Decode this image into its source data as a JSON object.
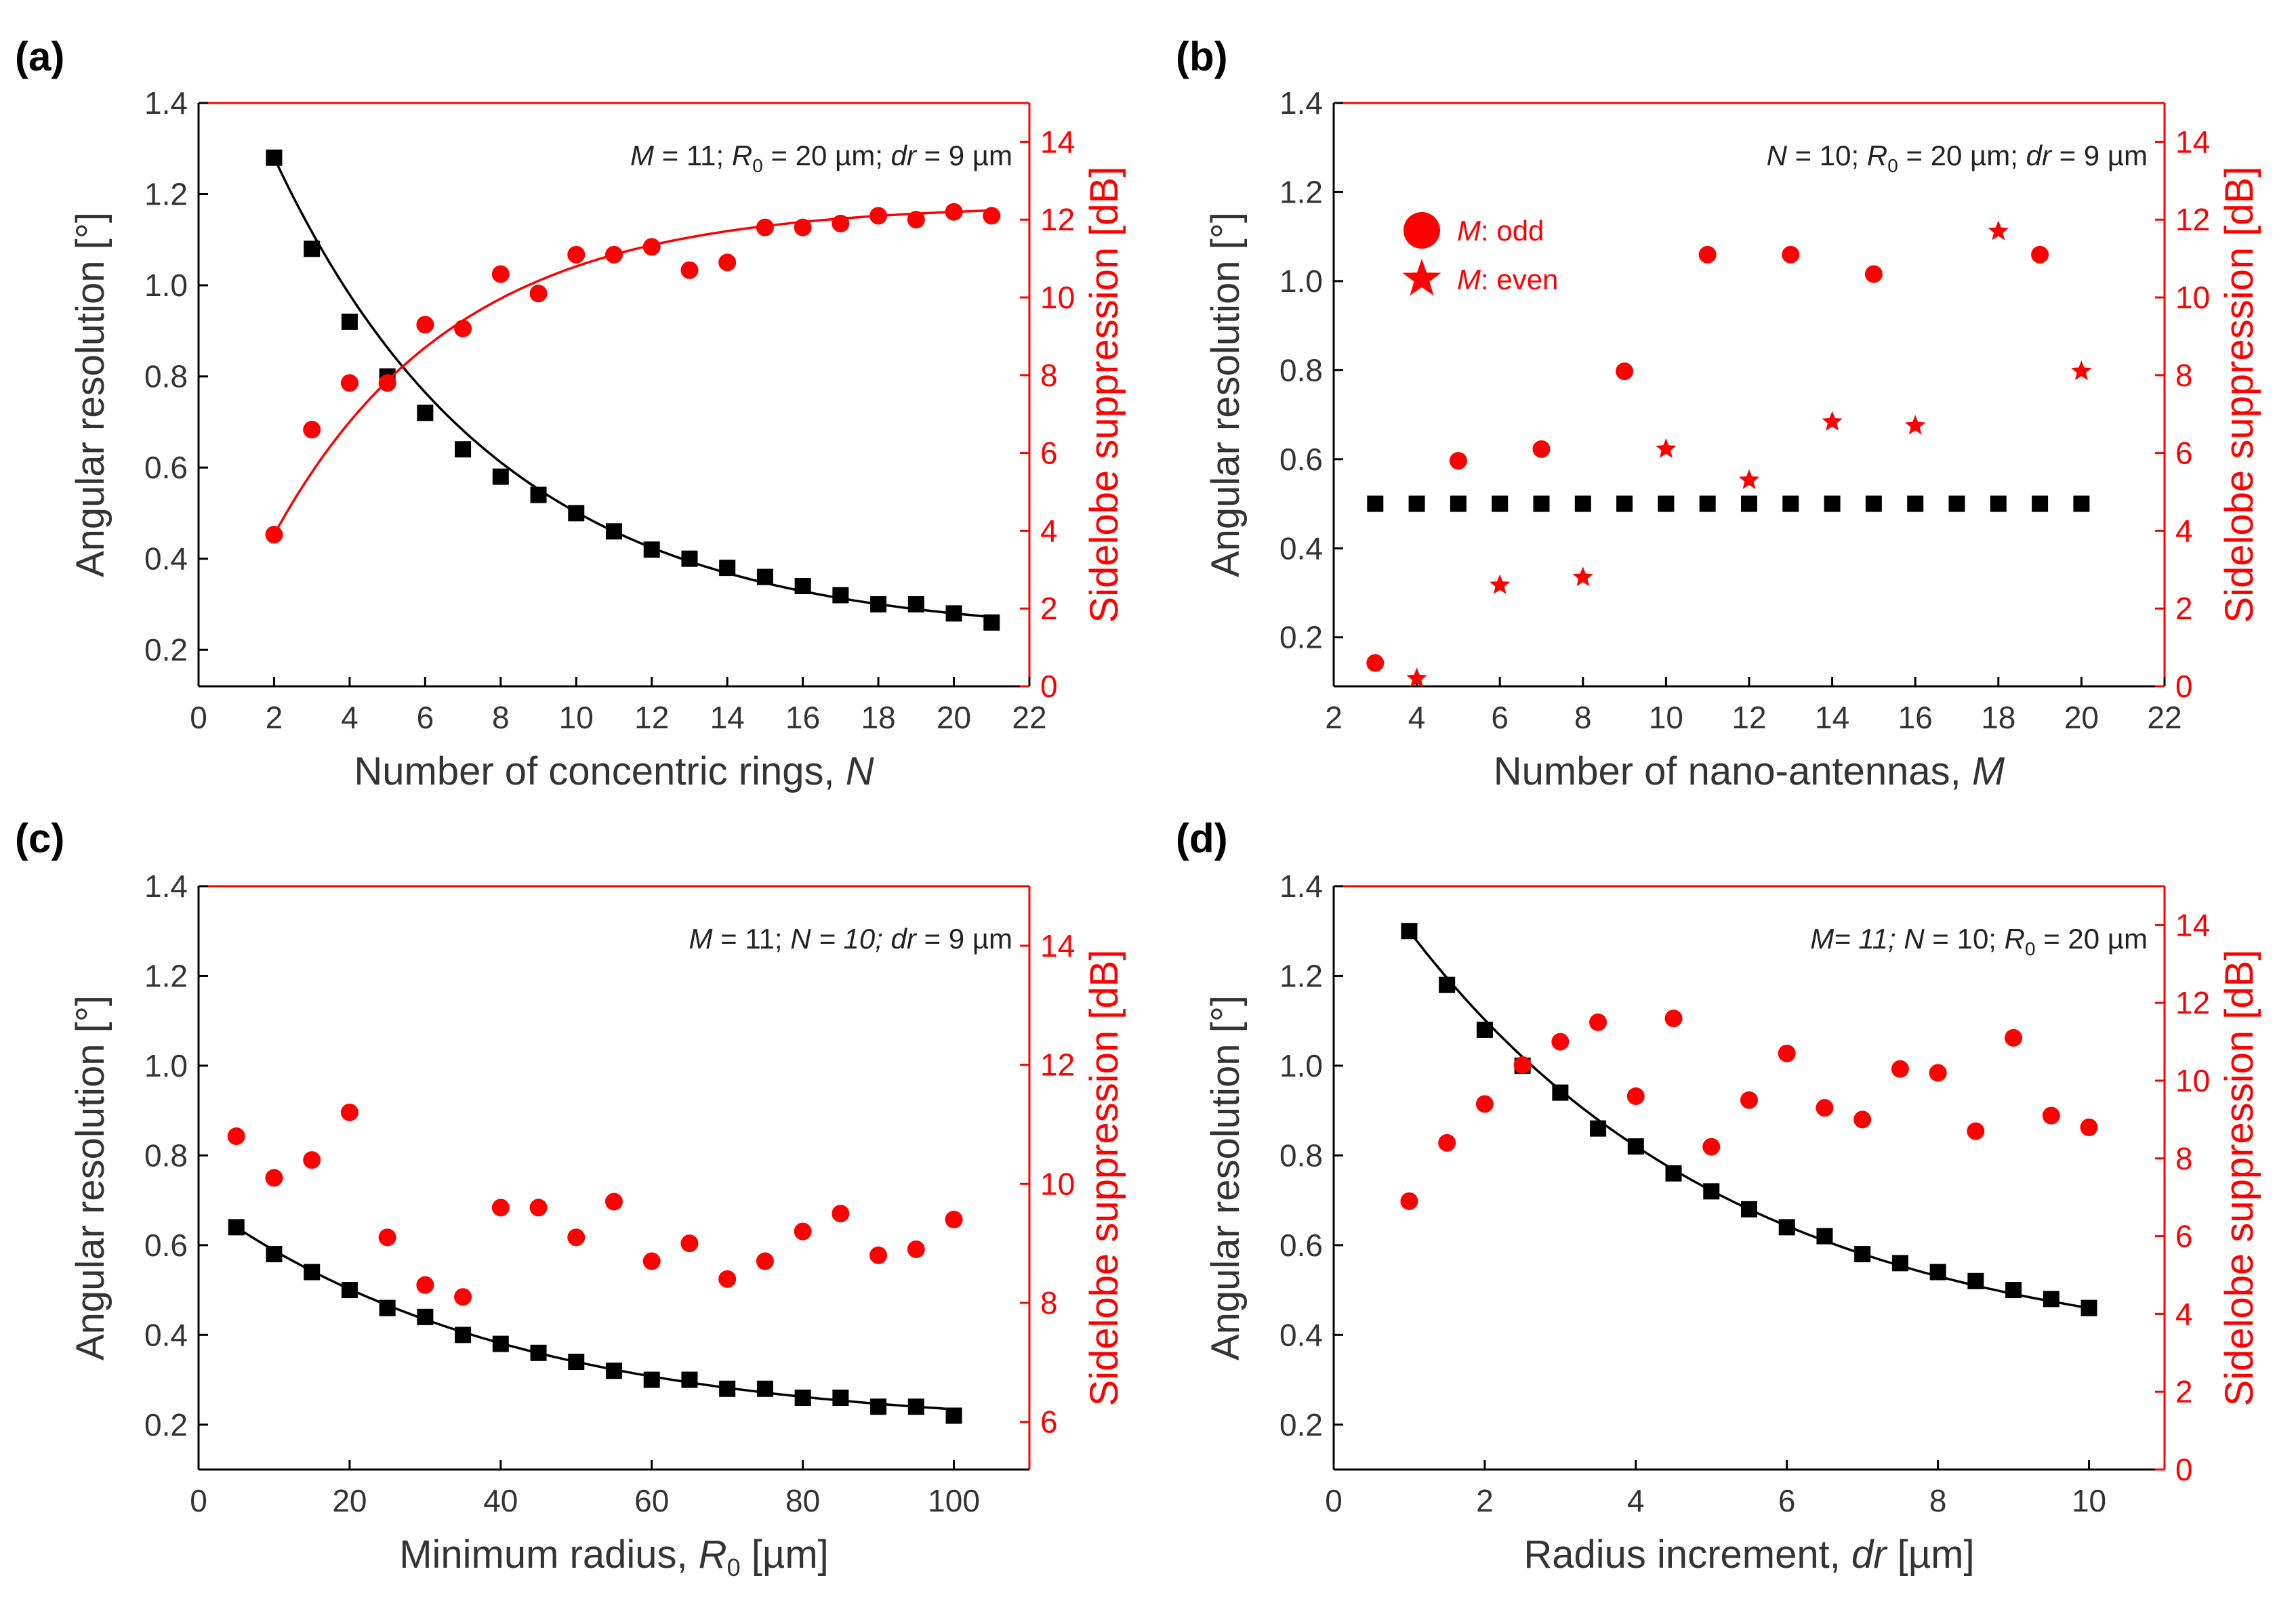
{
  "colors": {
    "left": "#000000",
    "right": "#ff0000"
  },
  "chart_data": [
    {
      "type": "scatter",
      "panel_label": "(a)",
      "xlabel_parts": [
        "Number of concentric rings, ",
        "N"
      ],
      "xlim": [
        0,
        22
      ],
      "xticks": [
        0,
        2,
        4,
        6,
        8,
        10,
        12,
        14,
        16,
        18,
        20,
        22
      ],
      "ylabel": "Angular resolution [°]",
      "ylim": [
        0.12,
        1.4
      ],
      "yticks": [
        0.2,
        0.4,
        0.6,
        0.8,
        1.0,
        1.2,
        1.4
      ],
      "y2label": "Sidelobe suppression [dB]",
      "y2lim": [
        0,
        15
      ],
      "y2ticks": [
        0,
        2,
        4,
        6,
        8,
        10,
        12,
        14
      ],
      "annotation": [
        {
          "t": "M",
          "i": true
        },
        {
          "t": " = 11; "
        },
        {
          "t": "R",
          "i": true
        },
        {
          "t": "0",
          "sub": true
        },
        {
          "t": " = 20 µm; "
        },
        {
          "t": "dr",
          "i": true
        },
        {
          "t": " = 9 µm"
        }
      ],
      "series": [
        {
          "axis": "left",
          "marker": "square",
          "x": [
            2,
            3,
            4,
            5,
            6,
            7,
            8,
            9,
            10,
            11,
            12,
            13,
            14,
            15,
            16,
            17,
            18,
            19,
            20,
            21
          ],
          "y": [
            1.28,
            1.08,
            0.92,
            0.8,
            0.72,
            0.64,
            0.58,
            0.54,
            0.5,
            0.46,
            0.42,
            0.4,
            0.38,
            0.36,
            0.34,
            0.32,
            0.3,
            0.3,
            0.28,
            0.26
          ],
          "fit": true
        },
        {
          "axis": "right",
          "marker": "circle",
          "x": [
            2,
            3,
            4,
            5,
            6,
            7,
            8,
            9,
            10,
            11,
            12,
            13,
            14,
            15,
            16,
            17,
            18,
            19,
            20,
            21
          ],
          "y": [
            3.9,
            6.6,
            7.8,
            7.8,
            9.3,
            9.2,
            10.6,
            10.1,
            11.1,
            11.1,
            11.3,
            10.7,
            10.9,
            11.8,
            11.8,
            11.9,
            12.1,
            12.0,
            12.2,
            12.1
          ],
          "fit": true
        }
      ]
    },
    {
      "type": "scatter",
      "panel_label": "(b)",
      "xlabel_parts": [
        "Number of nano-antennas, ",
        "M"
      ],
      "xlim": [
        2,
        22
      ],
      "xticks": [
        2,
        4,
        6,
        8,
        10,
        12,
        14,
        16,
        18,
        20,
        22
      ],
      "ylabel": "Angular resolution [°]",
      "ylim": [
        0.09,
        1.4
      ],
      "yticks": [
        0.2,
        0.4,
        0.6,
        0.8,
        1.0,
        1.2,
        1.4
      ],
      "y2label": "Sidelobe suppression [dB]",
      "y2lim": [
        0,
        15
      ],
      "y2ticks": [
        0,
        2,
        4,
        6,
        8,
        10,
        12,
        14
      ],
      "annotation": [
        {
          "t": "N",
          "i": true
        },
        {
          "t": " = 10; "
        },
        {
          "t": "R",
          "i": true
        },
        {
          "t": "0",
          "sub": true
        },
        {
          "t": " = 20 µm; "
        },
        {
          "t": "dr",
          "i": true
        },
        {
          "t": " = 9 µm"
        }
      ],
      "legend": [
        {
          "marker": "circle",
          "label_parts": [
            "M",
            ": odd"
          ]
        },
        {
          "marker": "star",
          "label_parts": [
            "M",
            ": even"
          ]
        }
      ],
      "series": [
        {
          "axis": "left",
          "marker": "square",
          "x": [
            3,
            4,
            5,
            6,
            7,
            8,
            9,
            10,
            11,
            12,
            13,
            14,
            15,
            16,
            17,
            18,
            19,
            20
          ],
          "y": [
            0.5,
            0.5,
            0.5,
            0.5,
            0.5,
            0.5,
            0.5,
            0.5,
            0.5,
            0.5,
            0.5,
            0.5,
            0.5,
            0.5,
            0.5,
            0.5,
            0.5,
            0.5
          ],
          "fit": false
        },
        {
          "axis": "right",
          "marker": "circle",
          "x": [
            3,
            5,
            7,
            9,
            11,
            13,
            15,
            19
          ],
          "y": [
            0.6,
            5.8,
            6.1,
            8.1,
            11.1,
            11.1,
            10.6,
            11.1
          ],
          "fit": false
        },
        {
          "axis": "right",
          "marker": "star",
          "x": [
            4,
            6,
            8,
            10,
            12,
            14,
            16,
            18,
            20
          ],
          "y": [
            0.2,
            2.6,
            2.8,
            6.1,
            5.3,
            6.8,
            6.7,
            11.7,
            8.1
          ],
          "fit": false
        }
      ]
    },
    {
      "type": "scatter",
      "panel_label": "(c)",
      "xlabel_parts": [
        "Minimum radius, ",
        "R",
        "0",
        " [µm]"
      ],
      "xlim": [
        0,
        110
      ],
      "xticks": [
        0,
        20,
        40,
        60,
        80,
        100
      ],
      "ylabel": "Angular resolution [°]",
      "ylim": [
        0.1,
        1.4
      ],
      "yticks": [
        0.2,
        0.4,
        0.6,
        0.8,
        1.0,
        1.2,
        1.4
      ],
      "y2label": "Sidelobe suppression [dB]",
      "y2lim": [
        5.2,
        15
      ],
      "y2ticks": [
        6,
        8,
        10,
        12,
        14
      ],
      "annotation": [
        {
          "t": "M",
          "i": true
        },
        {
          "t": " = 11; "
        },
        {
          "t": "N",
          "i": true
        },
        {
          "t": " = 10;",
          "i": true
        },
        {
          "t": " "
        },
        {
          "t": "dr",
          "i": true
        },
        {
          "t": " = 9 µm"
        }
      ],
      "series": [
        {
          "axis": "left",
          "marker": "square",
          "x": [
            5,
            10,
            15,
            20,
            25,
            30,
            35,
            40,
            45,
            50,
            55,
            60,
            65,
            70,
            75,
            80,
            85,
            90,
            95,
            100
          ],
          "y": [
            0.64,
            0.58,
            0.54,
            0.5,
            0.46,
            0.44,
            0.4,
            0.38,
            0.36,
            0.34,
            0.32,
            0.3,
            0.3,
            0.28,
            0.28,
            0.26,
            0.26,
            0.24,
            0.24,
            0.22
          ],
          "fit": true
        },
        {
          "axis": "right",
          "marker": "circle",
          "x": [
            5,
            10,
            15,
            20,
            25,
            30,
            35,
            40,
            45,
            50,
            55,
            60,
            65,
            70,
            75,
            80,
            85,
            90,
            95,
            100
          ],
          "y": [
            10.8,
            10.1,
            10.4,
            11.2,
            9.1,
            8.3,
            8.1,
            9.6,
            9.6,
            9.1,
            9.7,
            8.7,
            9.0,
            8.4,
            8.7,
            9.2,
            9.5,
            8.8,
            8.9,
            9.4
          ],
          "fit": false
        }
      ]
    },
    {
      "type": "scatter",
      "panel_label": "(d)",
      "xlabel_parts": [
        "Radius increment, ",
        "dr",
        " [µm]"
      ],
      "xlim": [
        0,
        11
      ],
      "xticks": [
        0,
        2,
        4,
        6,
        8,
        10
      ],
      "ylabel": "Angular resolution [°]",
      "ylim": [
        0.1,
        1.4
      ],
      "yticks": [
        0.2,
        0.4,
        0.6,
        0.8,
        1.0,
        1.2,
        1.4
      ],
      "y2label": "Sidelobe suppression [dB]",
      "y2lim": [
        0,
        15
      ],
      "y2ticks": [
        0,
        2,
        4,
        6,
        8,
        10,
        12,
        14
      ],
      "annotation": [
        {
          "t": "M",
          "i": true
        },
        {
          "t": "= 11;",
          "i": true
        },
        {
          "t": " "
        },
        {
          "t": "N",
          "i": true
        },
        {
          "t": " = 10; "
        },
        {
          "t": "R",
          "i": true
        },
        {
          "t": "0",
          "sub": true
        },
        {
          "t": " = 20 µm"
        }
      ],
      "series": [
        {
          "axis": "left",
          "marker": "square",
          "x": [
            1,
            1.5,
            2,
            2.5,
            3,
            3.5,
            4,
            4.5,
            5,
            5.5,
            6,
            6.5,
            7,
            7.5,
            8,
            8.5,
            9,
            9.5,
            10
          ],
          "y": [
            1.3,
            1.18,
            1.08,
            1.0,
            0.94,
            0.86,
            0.82,
            0.76,
            0.72,
            0.68,
            0.64,
            0.62,
            0.58,
            0.56,
            0.54,
            0.52,
            0.5,
            0.48,
            0.46
          ],
          "fit": true
        },
        {
          "axis": "right",
          "marker": "circle",
          "x": [
            1,
            1.5,
            2,
            2.5,
            3,
            3.5,
            4,
            4.5,
            5,
            5.5,
            6,
            6.5,
            7,
            7.5,
            8,
            8.5,
            9,
            9.5,
            10
          ],
          "y": [
            6.9,
            8.4,
            9.4,
            10.4,
            11.0,
            11.5,
            9.6,
            11.6,
            8.3,
            9.5,
            10.7,
            9.3,
            9.0,
            10.3,
            10.2,
            8.7,
            11.1,
            9.1,
            8.8
          ],
          "fit": false
        }
      ]
    }
  ]
}
